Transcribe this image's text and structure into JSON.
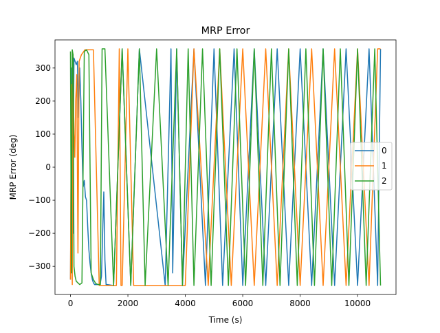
{
  "chart_data": {
    "type": "line",
    "title": "MRP Error",
    "xlabel": "Time (s)",
    "ylabel": "MRP Error (deg)",
    "xlim": [
      -540,
      11340
    ],
    "ylim": [
      -385,
      385
    ],
    "xticks": [
      0,
      2000,
      4000,
      6000,
      8000,
      10000
    ],
    "xtick_labels": [
      "0",
      "2000",
      "4000",
      "6000",
      "8000",
      "10000"
    ],
    "yticks": [
      -300,
      -200,
      -100,
      0,
      100,
      200,
      300
    ],
    "ytick_labels": [
      "−300",
      "−200",
      "−100",
      "0",
      "100",
      "200",
      "300"
    ],
    "grid": false,
    "legend": {
      "position": "center-right",
      "entries": [
        "0",
        "1",
        "2"
      ]
    },
    "series": [
      {
        "name": "0",
        "color": "#1f77b4",
        "x": [
          0,
          40,
          80,
          120,
          160,
          200,
          240,
          280,
          320,
          360,
          400,
          440,
          480,
          520,
          560,
          600,
          640,
          680,
          720,
          760,
          800,
          840,
          880,
          920,
          960,
          1000,
          1040,
          1080,
          1120,
          1160,
          1200,
          1240,
          1280,
          1500,
          1800,
          2100,
          2400,
          3300,
          3500,
          3560,
          3700,
          3900,
          4300,
          4700,
          5000,
          5300,
          5700,
          6000,
          6400,
          6800,
          7200,
          7600,
          8000,
          8400,
          8800,
          9200,
          9600,
          10000,
          10400,
          10700,
          10800
        ],
        "y": [
          -340,
          300,
          -200,
          330,
          320,
          310,
          320,
          150,
          300,
          200,
          60,
          -60,
          -40,
          -90,
          -100,
          -180,
          -250,
          -290,
          -320,
          -340,
          -350,
          -355,
          -355,
          -355,
          -355,
          -355,
          -350,
          -330,
          -200,
          -75,
          -280,
          -355,
          -355,
          -358,
          358,
          -358,
          358,
          -358,
          358,
          -320,
          358,
          -358,
          358,
          -358,
          358,
          -358,
          358,
          -358,
          358,
          -358,
          358,
          -358,
          358,
          -358,
          358,
          -358,
          358,
          -358,
          358,
          -358,
          358
        ]
      },
      {
        "name": "1",
        "color": "#ff7f0e",
        "x": [
          0,
          30,
          60,
          90,
          120,
          150,
          180,
          220,
          260,
          300,
          340,
          380,
          420,
          460,
          500,
          600,
          800,
          1000,
          1200,
          1400,
          1600,
          1700,
          1760,
          1800,
          2000,
          2200,
          2400,
          2800,
          3300,
          3600,
          4000,
          4300,
          4800,
          5200,
          5600,
          6000,
          6400,
          6800,
          7200,
          7600,
          8000,
          8400,
          8800,
          9200,
          9600,
          10000,
          10400,
          10700,
          10800
        ],
        "y": [
          -340,
          250,
          -355,
          300,
          100,
          30,
          200,
          280,
          -260,
          320,
          330,
          340,
          345,
          350,
          355,
          355,
          355,
          -358,
          -358,
          -358,
          -358,
          358,
          -358,
          -358,
          358,
          -358,
          -358,
          -358,
          -358,
          -358,
          -358,
          358,
          -358,
          358,
          -358,
          358,
          -358,
          358,
          -358,
          358,
          -358,
          358,
          -358,
          358,
          -358,
          358,
          -358,
          358,
          358
        ]
      },
      {
        "name": "2",
        "color": "#2ca02c",
        "x": [
          0,
          30,
          60,
          90,
          120,
          160,
          200,
          260,
          320,
          400,
          480,
          560,
          640,
          720,
          800,
          880,
          960,
          1040,
          1100,
          1200,
          1500,
          1800,
          2100,
          2400,
          2600,
          3000,
          3400,
          3700,
          3900,
          4100,
          4300,
          4600,
          4900,
          5200,
          5500,
          5800,
          6100,
          6400,
          6700,
          7000,
          7300,
          7600,
          7900,
          8200,
          8500,
          8800,
          9100,
          9400,
          9700,
          10000,
          10300,
          10600,
          10800
        ],
        "y": [
          350,
          -320,
          355,
          340,
          -300,
          -330,
          -345,
          -350,
          -355,
          -350,
          350,
          355,
          340,
          -320,
          -340,
          -352,
          -355,
          -355,
          358,
          358,
          -358,
          358,
          -358,
          358,
          -358,
          358,
          -358,
          358,
          -358,
          358,
          -358,
          358,
          -358,
          358,
          -358,
          358,
          -358,
          358,
          -358,
          358,
          -358,
          358,
          -358,
          358,
          -358,
          358,
          -358,
          358,
          -358,
          358,
          -358,
          358,
          -358
        ]
      }
    ]
  }
}
